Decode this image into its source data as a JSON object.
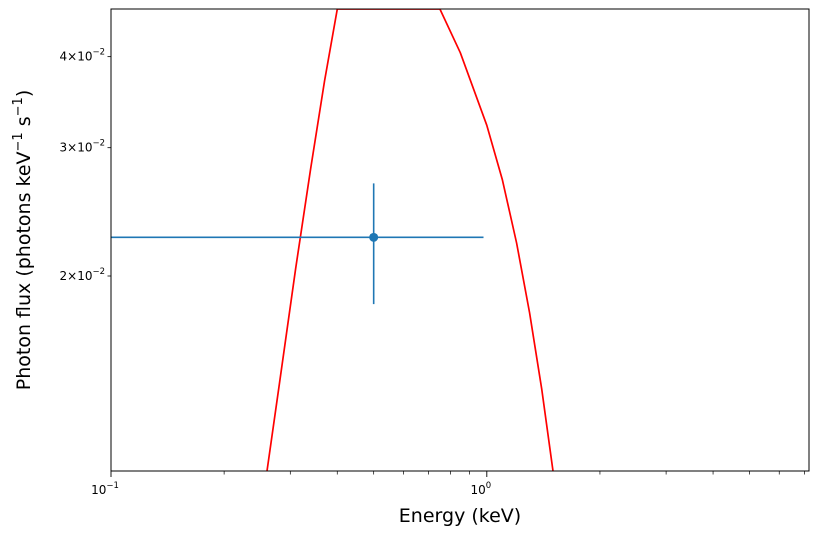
{
  "chart_data": {
    "type": "scatter",
    "xlabel": "Energy (keV)",
    "ylabel_parts": [
      "Photon flux (photons keV",
      "−1",
      " s",
      "−1",
      ")"
    ],
    "x_scale": "log",
    "y_scale": "log",
    "xlim": [
      0.1,
      7.2
    ],
    "ylim": [
      0.0108,
      0.0465
    ],
    "grid": false,
    "x_ticks": [
      {
        "value": 0.1,
        "base": "10",
        "exp": "−1"
      },
      {
        "value": 1.0,
        "base": "10",
        "exp": "0"
      }
    ],
    "y_ticks": [
      {
        "value": 0.02,
        "mant": "2",
        "exp": "−2"
      },
      {
        "value": 0.03,
        "mant": "3",
        "exp": "−2"
      },
      {
        "value": 0.04,
        "mant": "4",
        "exp": "−2"
      }
    ],
    "data_points": [
      {
        "x": 0.5,
        "y": 0.0226,
        "x_low": 0.1,
        "x_high": 0.98,
        "y_low": 0.0183,
        "y_high": 0.0268
      }
    ],
    "model_curve": [
      {
        "x": 0.26,
        "y": 0.0108
      },
      {
        "x": 0.28,
        "y": 0.0141
      },
      {
        "x": 0.31,
        "y": 0.0205
      },
      {
        "x": 0.34,
        "y": 0.0281
      },
      {
        "x": 0.37,
        "y": 0.037
      },
      {
        "x": 0.4,
        "y": 0.0465
      },
      {
        "x": 0.75,
        "y": 0.0465
      },
      {
        "x": 0.85,
        "y": 0.0405
      },
      {
        "x": 1.0,
        "y": 0.0322
      },
      {
        "x": 1.1,
        "y": 0.0271
      },
      {
        "x": 1.2,
        "y": 0.0222
      },
      {
        "x": 1.3,
        "y": 0.0178
      },
      {
        "x": 1.4,
        "y": 0.014
      },
      {
        "x": 1.5,
        "y": 0.0108
      }
    ],
    "colors": {
      "data": "#1f77b4",
      "model": "#ff0000",
      "axes": "#000000"
    }
  }
}
